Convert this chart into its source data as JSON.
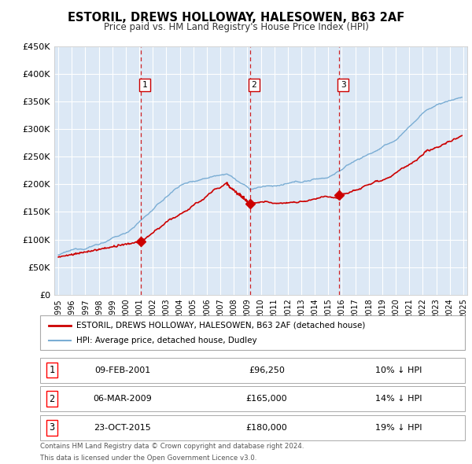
{
  "title": "ESTORIL, DREWS HOLLOWAY, HALESOWEN, B63 2AF",
  "subtitle": "Price paid vs. HM Land Registry's House Price Index (HPI)",
  "legend_label_red": "ESTORIL, DREWS HOLLOWAY, HALESOWEN, B63 2AF (detached house)",
  "legend_label_blue": "HPI: Average price, detached house, Dudley",
  "footer_line1": "Contains HM Land Registry data © Crown copyright and database right 2024.",
  "footer_line2": "This data is licensed under the Open Government Licence v3.0.",
  "transactions": [
    {
      "num": 1,
      "date": "09-FEB-2001",
      "price": "£96,250",
      "pct": "10% ↓ HPI",
      "year_x": 2001.1,
      "y_val": 96250
    },
    {
      "num": 2,
      "date": "06-MAR-2009",
      "price": "£165,000",
      "pct": "14% ↓ HPI",
      "year_x": 2009.2,
      "y_val": 165000
    },
    {
      "num": 3,
      "date": "23-OCT-2015",
      "price": "£180,000",
      "pct": "19% ↓ HPI",
      "year_x": 2015.8,
      "y_val": 180000
    }
  ],
  "ylim": [
    0,
    450000
  ],
  "xlim_start": 1994.7,
  "xlim_end": 2025.3,
  "yticks": [
    0,
    50000,
    100000,
    150000,
    200000,
    250000,
    300000,
    350000,
    400000,
    450000
  ],
  "ytick_labels": [
    "£0",
    "£50K",
    "£100K",
    "£150K",
    "£200K",
    "£250K",
    "£300K",
    "£350K",
    "£400K",
    "£450K"
  ],
  "fig_bg": "#ffffff",
  "plot_bg": "#dce8f5",
  "grid_color": "#ffffff",
  "red_color": "#cc0000",
  "blue_color": "#7aadd4",
  "vline_color": "#cc0000",
  "marker_color": "#cc0000",
  "num_box_color": "#cc0000"
}
